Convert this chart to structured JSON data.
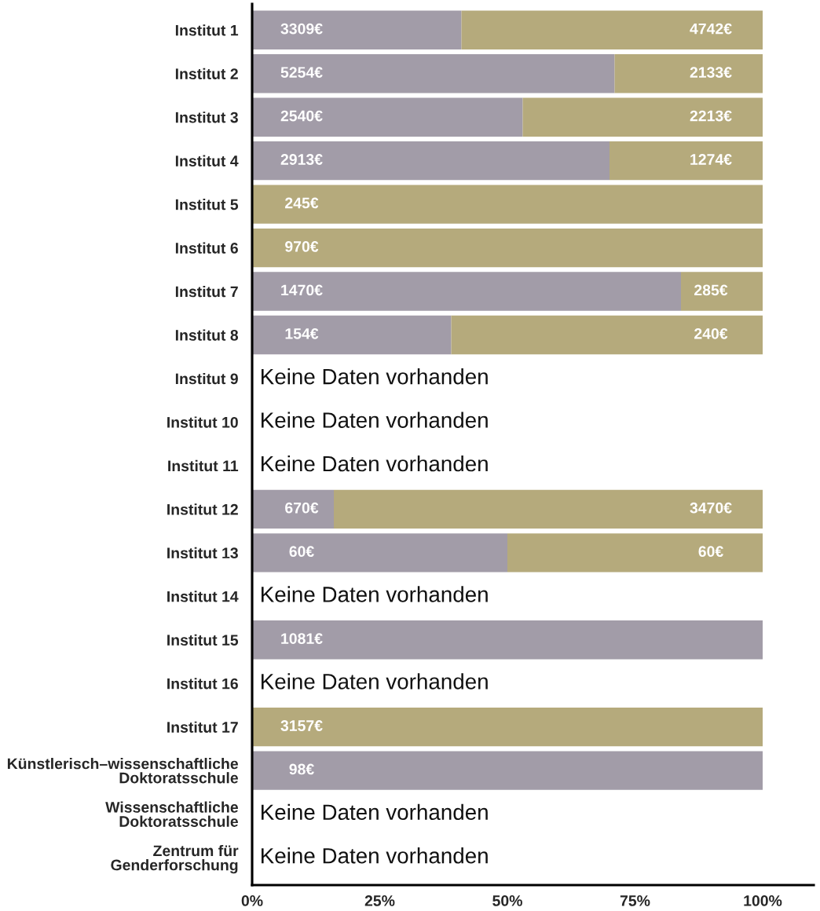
{
  "chart_data": {
    "type": "bar",
    "orientation": "horizontal",
    "stacked": true,
    "categories": [
      "Institut 1",
      "Institut 2",
      "Institut 3",
      "Institut 4",
      "Institut 5",
      "Institut 6",
      "Institut 7",
      "Institut 8",
      "Institut 9",
      "Institut 10",
      "Institut 11",
      "Institut 12",
      "Institut 13",
      "Institut 14",
      "Institut 15",
      "Institut 16",
      "Institut 17",
      "Künstlerisch–wissenschaftliche\nDoktoratsschule",
      "Wissenschaftliche\nDoktoratsschule",
      "Zentrum für\nGenderforschung"
    ],
    "series": [
      {
        "color": "#a29ca8",
        "values": [
          41,
          71,
          53,
          70,
          null,
          null,
          84,
          39,
          null,
          null,
          null,
          16,
          50,
          null,
          100,
          null,
          null,
          100,
          null,
          null
        ]
      },
      {
        "color": "#b5aa7c",
        "values": [
          59,
          29,
          47,
          30,
          100,
          100,
          16,
          61,
          null,
          null,
          null,
          84,
          50,
          null,
          null,
          null,
          100,
          null,
          null,
          null
        ]
      }
    ],
    "xlim": [
      0,
      110
    ],
    "xticks": [
      {
        "value": 0,
        "label": "0%"
      },
      {
        "value": 25,
        "label": "25%"
      },
      {
        "value": 50,
        "label": "50%"
      },
      {
        "value": 75,
        "label": "75%"
      },
      {
        "value": 100,
        "label": "100%"
      }
    ],
    "annotations": [
      "3309€",
      "4742€",
      "5254€",
      "2133€",
      "2540€",
      "2213€",
      "2913€",
      "1274€",
      "245€",
      "970€",
      "1470€",
      "285€",
      "154€",
      "240€",
      "Keine Daten vorhanden",
      "Keine Daten vorhanden",
      "Keine Daten vorhanden",
      "670€",
      "3470€",
      "60€",
      "60€",
      "Keine Daten vorhanden",
      "1081€",
      "Keine Daten vorhanden",
      "3157€",
      "98€",
      "Keine Daten vorhanden",
      "Keine Daten vorhanden"
    ]
  }
}
